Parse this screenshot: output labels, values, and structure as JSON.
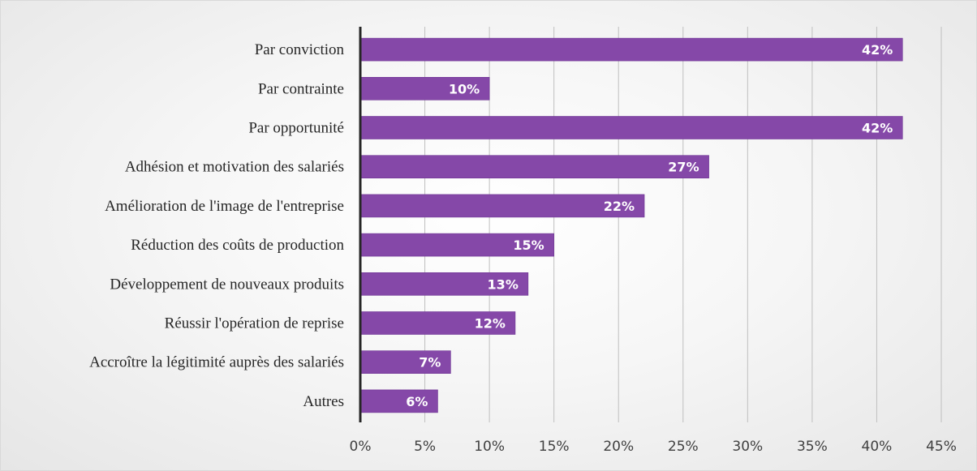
{
  "colors": {
    "bar": "#8548a8",
    "bar_edge": "#6f3694",
    "grid": "#bfbfbf",
    "axis": "#262626"
  },
  "chart_data": {
    "type": "bar",
    "orientation": "horizontal",
    "categories": [
      "Par conviction",
      "Par contrainte",
      "Par opportunité",
      "Adhésion et motivation des salariés",
      "Amélioration de l'image de l'entreprise",
      "Réduction des coûts de production",
      "Développement de nouveaux produits",
      "Réussir l'opération de reprise",
      "Accroître la légitimité auprès des salariés",
      "Autres"
    ],
    "values": [
      42,
      10,
      42,
      27,
      22,
      15,
      13,
      12,
      7,
      6
    ],
    "data_labels": [
      "42%",
      "10%",
      "42%",
      "27%",
      "22%",
      "15%",
      "13%",
      "12%",
      "7%",
      "6%"
    ],
    "xlim": [
      0,
      45
    ],
    "x_ticks": [
      0,
      5,
      10,
      15,
      20,
      25,
      30,
      35,
      40,
      45
    ],
    "x_tick_labels": [
      "0%",
      "5%",
      "10%",
      "15%",
      "20%",
      "25%",
      "30%",
      "35%",
      "40%",
      "45%"
    ],
    "grid": true,
    "legend": "none"
  }
}
